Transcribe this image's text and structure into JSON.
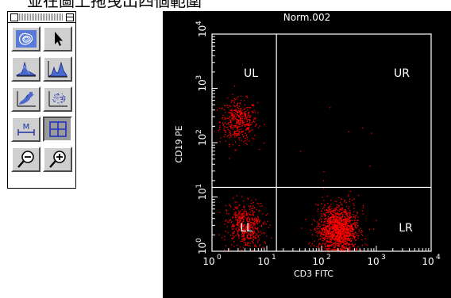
{
  "caption": "並在圖上拖曳出四個範圍",
  "palette": {
    "tools": [
      {
        "name": "contour-plot-tool",
        "icon": "contour-plot-icon"
      },
      {
        "name": "pointer-tool",
        "icon": "arrow-pointer-icon"
      },
      {
        "name": "3d-histogram-tool",
        "icon": "3d-histogram-icon"
      },
      {
        "name": "histogram-tool",
        "icon": "histogram-icon"
      },
      {
        "name": "density-plot-tool",
        "icon": "density-plot-icon"
      },
      {
        "name": "dot-plot-tool",
        "icon": "dot-plot-icon"
      },
      {
        "name": "marker-tool",
        "icon": "marker-icon",
        "label": "M"
      },
      {
        "name": "quadrant-tool",
        "icon": "quadrant-icon",
        "selected": true
      },
      {
        "name": "zoom-out-tool",
        "icon": "zoom-out-icon"
      },
      {
        "name": "zoom-in-tool",
        "icon": "zoom-in-icon"
      }
    ]
  },
  "plot": {
    "title": "Norm.002",
    "xlabel": "CD3 FITC",
    "ylabel": "CD19 PE",
    "quadrants": {
      "ul": "UL",
      "ur": "UR",
      "ll": "LL",
      "lr": "LR"
    },
    "x_ticks": [
      {
        "base": "10",
        "exp": "0"
      },
      {
        "base": "10",
        "exp": "1"
      },
      {
        "base": "10",
        "exp": "2"
      },
      {
        "base": "10",
        "exp": "3"
      },
      {
        "base": "10",
        "exp": "4"
      }
    ],
    "y_ticks": [
      {
        "base": "10",
        "exp": "0"
      },
      {
        "base": "10",
        "exp": "1"
      },
      {
        "base": "10",
        "exp": "2"
      },
      {
        "base": "10",
        "exp": "3"
      },
      {
        "base": "10",
        "exp": "4"
      }
    ],
    "x_scale": "log",
    "y_scale": "log",
    "xlim": [
      1,
      10000
    ],
    "ylim": [
      1,
      10000
    ],
    "quadrant_divider": {
      "x": 15,
      "y": 15
    },
    "dot_color": "#ff0000",
    "background_color": "#000000",
    "clusters": [
      {
        "quadrant": "ul",
        "center": {
          "x": 3,
          "y": 250
        },
        "count": 420
      },
      {
        "quadrant": "ll",
        "center": {
          "x": 4,
          "y": 3
        },
        "count": 520
      },
      {
        "quadrant": "lr",
        "center": {
          "x": 200,
          "y": 2.5
        },
        "count": 1400
      }
    ]
  }
}
